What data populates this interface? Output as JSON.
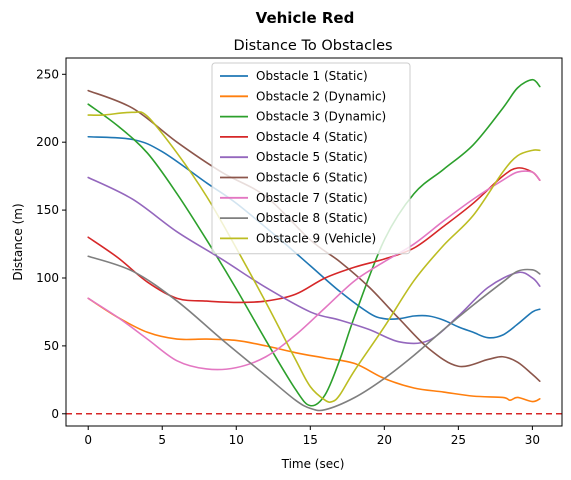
{
  "chart_data": {
    "type": "line",
    "suptitle": "Vehicle Red",
    "title": "Distance To Obstacles",
    "xlabel": "Time (sec)",
    "ylabel": "Distance (m)",
    "xlim": [
      -1.5,
      32.0
    ],
    "ylim": [
      -9,
      262
    ],
    "xticks": [
      0,
      5,
      10,
      15,
      20,
      25,
      30
    ],
    "yticks": [
      0,
      50,
      100,
      150,
      200,
      250
    ],
    "grid": false,
    "legend_position": "upper center",
    "reference_line": {
      "y": 0,
      "color": "#d62728",
      "style": "dashed"
    },
    "series": [
      {
        "name": "Obstacle 1 (Static)",
        "color": "#1f77b4",
        "x": [
          0,
          3,
          5,
          8,
          10,
          13,
          15,
          17,
          19,
          20,
          21,
          22,
          23,
          24,
          25,
          26,
          27,
          28,
          29,
          30,
          30.5
        ],
        "y": [
          204,
          202,
          193,
          170,
          155,
          128,
          109,
          90,
          74,
          70,
          70,
          72,
          72,
          69,
          64,
          60,
          56,
          58,
          66,
          75,
          77
        ]
      },
      {
        "name": "Obstacle 2 (Dynamic)",
        "color": "#ff7f0e",
        "x": [
          0,
          2,
          4,
          6,
          8,
          10,
          12,
          14,
          16,
          18,
          20,
          22,
          24,
          26,
          28,
          28.5,
          29,
          30,
          30.5
        ],
        "y": [
          85,
          71,
          60,
          55,
          55,
          54,
          50,
          45,
          41,
          37,
          26,
          19,
          16,
          13,
          12,
          10,
          12,
          9,
          11
        ]
      },
      {
        "name": "Obstacle 3 (Dynamic)",
        "color": "#2ca02c",
        "x": [
          0,
          2,
          4,
          6,
          8,
          10,
          12,
          14,
          15,
          16,
          17,
          18,
          20,
          22,
          24,
          26,
          28,
          29,
          30,
          30.5
        ],
        "y": [
          228,
          212,
          192,
          162,
          128,
          92,
          54,
          18,
          6,
          14,
          40,
          72,
          128,
          162,
          180,
          198,
          225,
          240,
          246,
          241
        ]
      },
      {
        "name": "Obstacle 4 (Static)",
        "color": "#d62728",
        "x": [
          0,
          2,
          4,
          6,
          8,
          10,
          12,
          14,
          16,
          18,
          20,
          22,
          24,
          26,
          28,
          29,
          30,
          30.5
        ],
        "y": [
          130,
          115,
          97,
          85,
          83,
          82,
          83,
          88,
          100,
          108,
          114,
          122,
          138,
          155,
          175,
          181,
          178,
          172
        ]
      },
      {
        "name": "Obstacle 5 (Static)",
        "color": "#9467bd",
        "x": [
          0,
          3,
          6,
          9,
          12,
          15,
          17,
          19,
          21,
          23,
          25,
          27,
          29,
          30,
          30.5
        ],
        "y": [
          174,
          158,
          134,
          114,
          93,
          75,
          69,
          62,
          53,
          54,
          72,
          93,
          104,
          100,
          94
        ]
      },
      {
        "name": "Obstacle 6 (Static)",
        "color": "#8c564b",
        "x": [
          0,
          3,
          6,
          9,
          12,
          15,
          17,
          19,
          21,
          23,
          25,
          27,
          28,
          29,
          30,
          30.5
        ],
        "y": [
          238,
          225,
          200,
          178,
          160,
          128,
          112,
          93,
          70,
          48,
          35,
          40,
          42,
          38,
          29,
          24
        ]
      },
      {
        "name": "Obstacle 7 (Static)",
        "color": "#e377c2",
        "x": [
          0,
          2,
          4,
          6,
          8,
          10,
          12,
          14,
          16,
          18,
          20,
          22,
          24,
          26,
          28,
          29,
          30,
          30.5
        ],
        "y": [
          85,
          71,
          55,
          39,
          33,
          34,
          42,
          58,
          78,
          98,
          112,
          125,
          142,
          158,
          172,
          178,
          178,
          172
        ]
      },
      {
        "name": "Obstacle 8 (Static)",
        "color": "#7f7f7f",
        "x": [
          0,
          3,
          6,
          9,
          12,
          14,
          15,
          16,
          18,
          20,
          22,
          24,
          26,
          28,
          29,
          30,
          30.5
        ],
        "y": [
          116,
          105,
          83,
          55,
          28,
          10,
          4,
          3,
          12,
          26,
          43,
          62,
          80,
          97,
          105,
          106,
          103
        ]
      },
      {
        "name": "Obstacle 9 (Vehicle)",
        "color": "#bcbd22",
        "x": [
          0,
          1,
          3,
          4,
          6,
          8,
          10,
          12,
          14,
          15,
          16,
          16.5,
          17,
          18,
          20,
          22,
          24,
          26,
          28,
          29,
          30,
          30.5
        ],
        "y": [
          220,
          220,
          222,
          219,
          192,
          160,
          122,
          82,
          40,
          20,
          10,
          9,
          14,
          32,
          64,
          98,
          124,
          146,
          178,
          190,
          194,
          194
        ]
      }
    ]
  }
}
